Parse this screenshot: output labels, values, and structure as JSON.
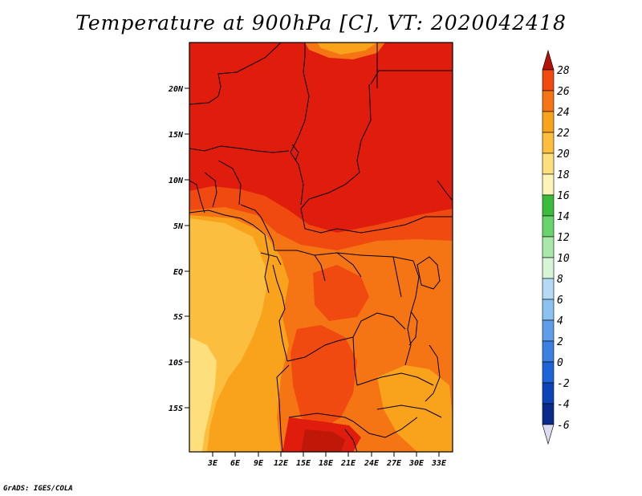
{
  "title": "Temperature at 900hPa [C], VT: 2020042418",
  "credit": "GrADS: IGES/COLA",
  "map": {
    "variable": "Temperature",
    "level": "900hPa",
    "units": "C",
    "valid_time": "2020042418",
    "lat_labels": [
      "20N",
      "15N",
      "10N",
      "5N",
      "EQ",
      "5S",
      "10S",
      "15S"
    ],
    "lon_labels": [
      "3E",
      "6E",
      "9E",
      "12E",
      "15E",
      "18E",
      "21E",
      "24E",
      "27E",
      "30E",
      "33E"
    ]
  },
  "colorbar": {
    "levels": [
      "28",
      "26",
      "24",
      "22",
      "20",
      "18",
      "16",
      "14",
      "12",
      "10",
      "8",
      "6",
      "4",
      "2",
      "0",
      "-2",
      "-4",
      "-6"
    ],
    "colors": [
      "#e01c0d",
      "#f04a10",
      "#f57514",
      "#f9a21c",
      "#fbbe3e",
      "#fde07d",
      "#fef4b8",
      "#3cbc3c",
      "#6bd36b",
      "#a8e8a8",
      "#d6f4d6",
      "#b4daf5",
      "#8cc2f0",
      "#5e9ee8",
      "#3c80e2",
      "#1e64d8",
      "#0c44b8",
      "#0a2a8c",
      "#061466"
    ],
    "top_arrow_color": "#b41208",
    "bottom_arrow_color": "#dcdcf0"
  },
  "fills": {
    "t28": "#e01c0d",
    "t26": "#f04a10",
    "t24": "#f57514",
    "t22": "#f9a21c",
    "t20": "#fbbe3e",
    "t18": "#fde07d",
    "t30": "#c01808"
  }
}
